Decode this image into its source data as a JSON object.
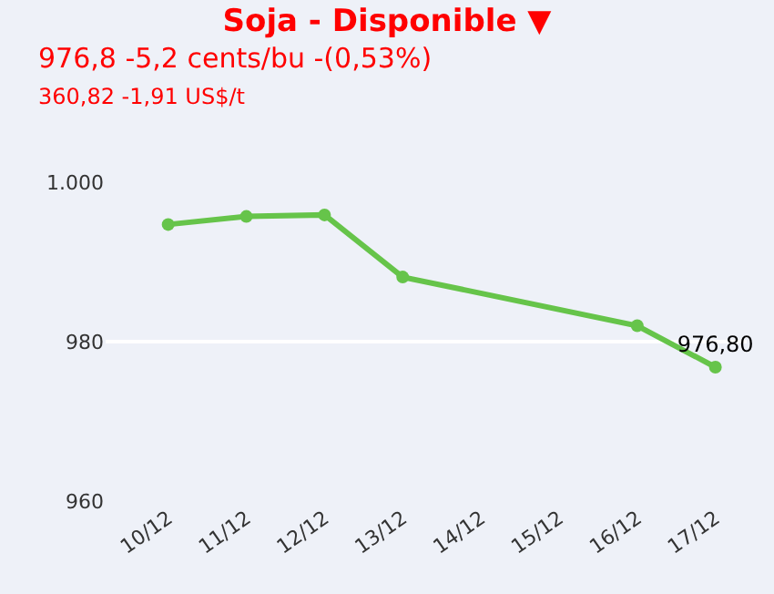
{
  "chart_data": {
    "type": "line",
    "title": "Soja - Disponible ▼",
    "subtitle": "976,8 -5,2 cents/bu -(0,53%)",
    "annotations": [
      "360,82 -1,91 US$/t"
    ],
    "categories": [
      "10/12",
      "11/12",
      "12/12",
      "13/12",
      "14/12",
      "15/12",
      "16/12",
      "17/12"
    ],
    "series": [
      {
        "color": "#66c44a",
        "values": [
          994.7,
          995.7,
          995.9,
          988.1,
          null,
          null,
          982.0,
          976.8
        ],
        "value_labels": [
          null,
          null,
          null,
          null,
          null,
          null,
          null,
          "976,80"
        ]
      }
    ],
    "ylim": [
      960,
      1000
    ],
    "yticks": [
      {
        "value": 960,
        "label": "960"
      },
      {
        "value": 980,
        "label": "980"
      },
      {
        "value": 1000,
        "label": "1.000"
      }
    ],
    "grid": "y",
    "marker": "circle",
    "line_style": "solid"
  }
}
